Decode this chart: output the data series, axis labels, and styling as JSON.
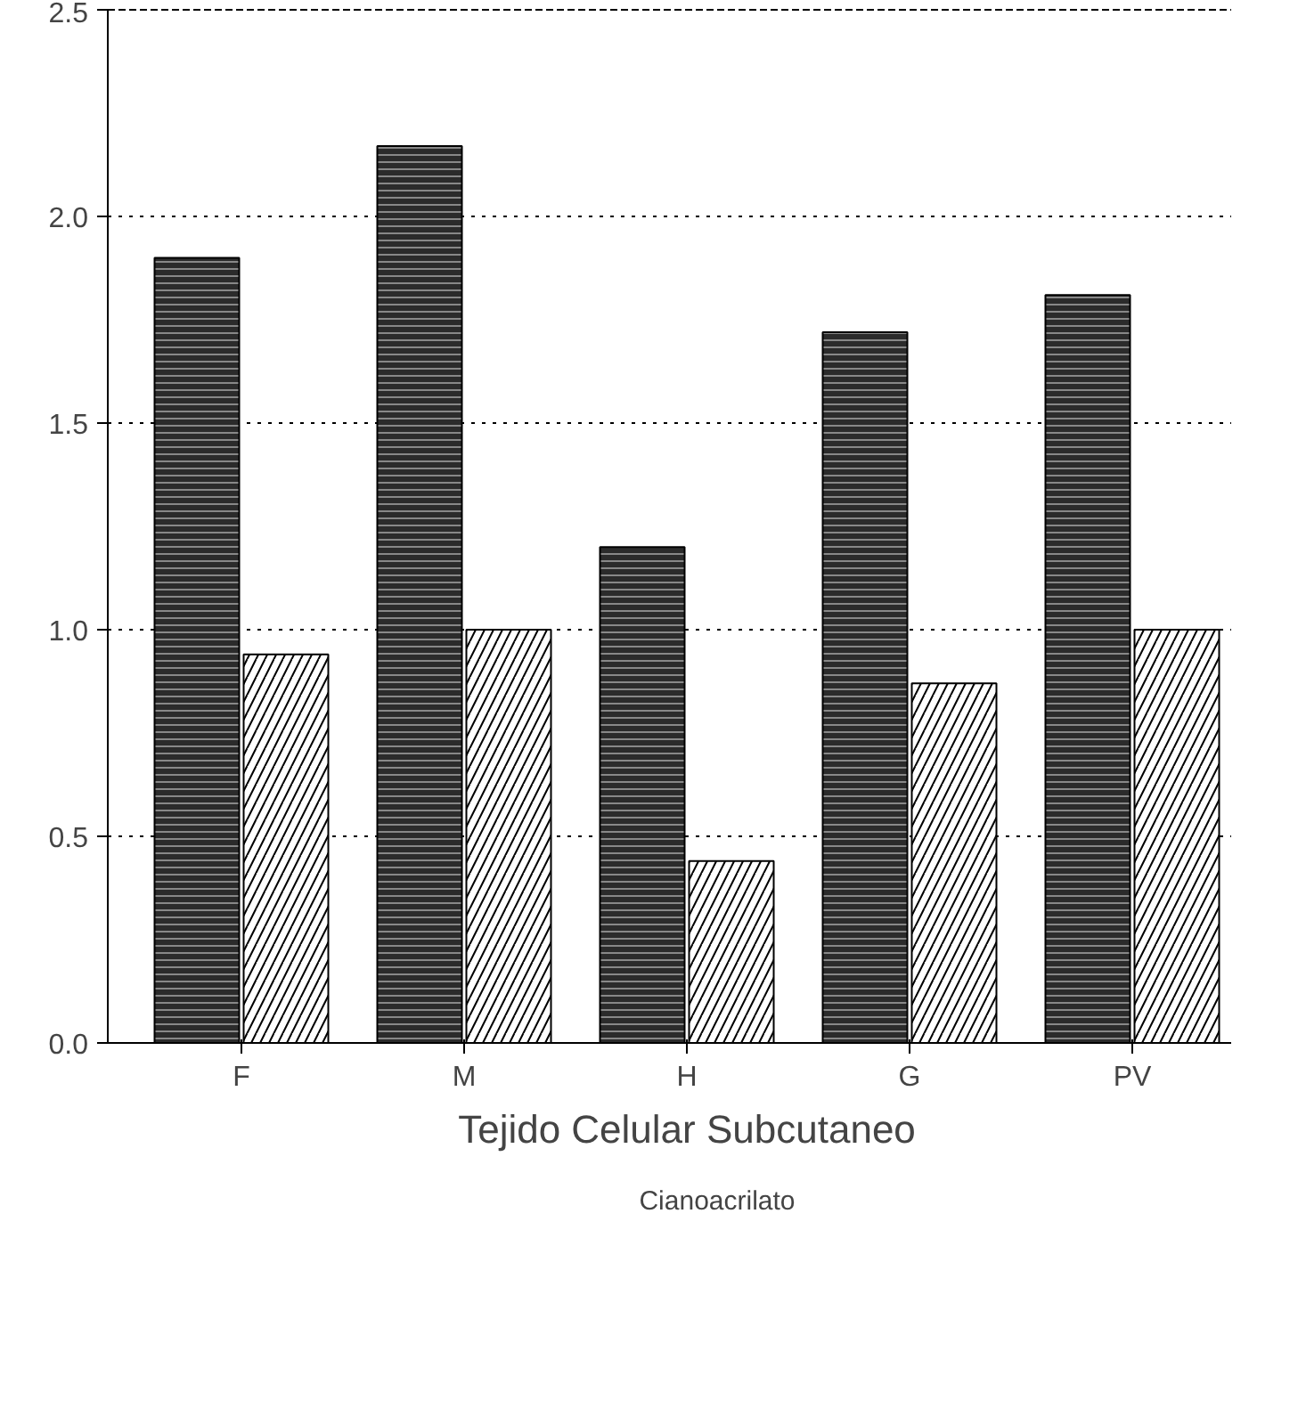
{
  "chart_data": {
    "type": "bar",
    "xlabel": "Tejido Celular Subcutaneo",
    "categories": [
      "F",
      "M",
      "H",
      "G",
      "PV"
    ],
    "series": [
      {
        "color": "#2b2b2b",
        "values": [
          1.9,
          2.17,
          1.2,
          1.72,
          1.81
        ]
      },
      {
        "name": "Cianoacrilato",
        "color": "#ffffff",
        "values": [
          0.94,
          1.0,
          0.44,
          0.87,
          1.0
        ]
      }
    ],
    "ylim": [
      0,
      2.5
    ],
    "yticks": [
      {
        "value": 0,
        "label": "0.0"
      },
      0.5,
      {
        "value": 1,
        "label": "1.0"
      },
      1.5,
      {
        "value": 2,
        "label": "2.0"
      },
      2.5
    ],
    "grid": "y",
    "legend": "bottom"
  }
}
